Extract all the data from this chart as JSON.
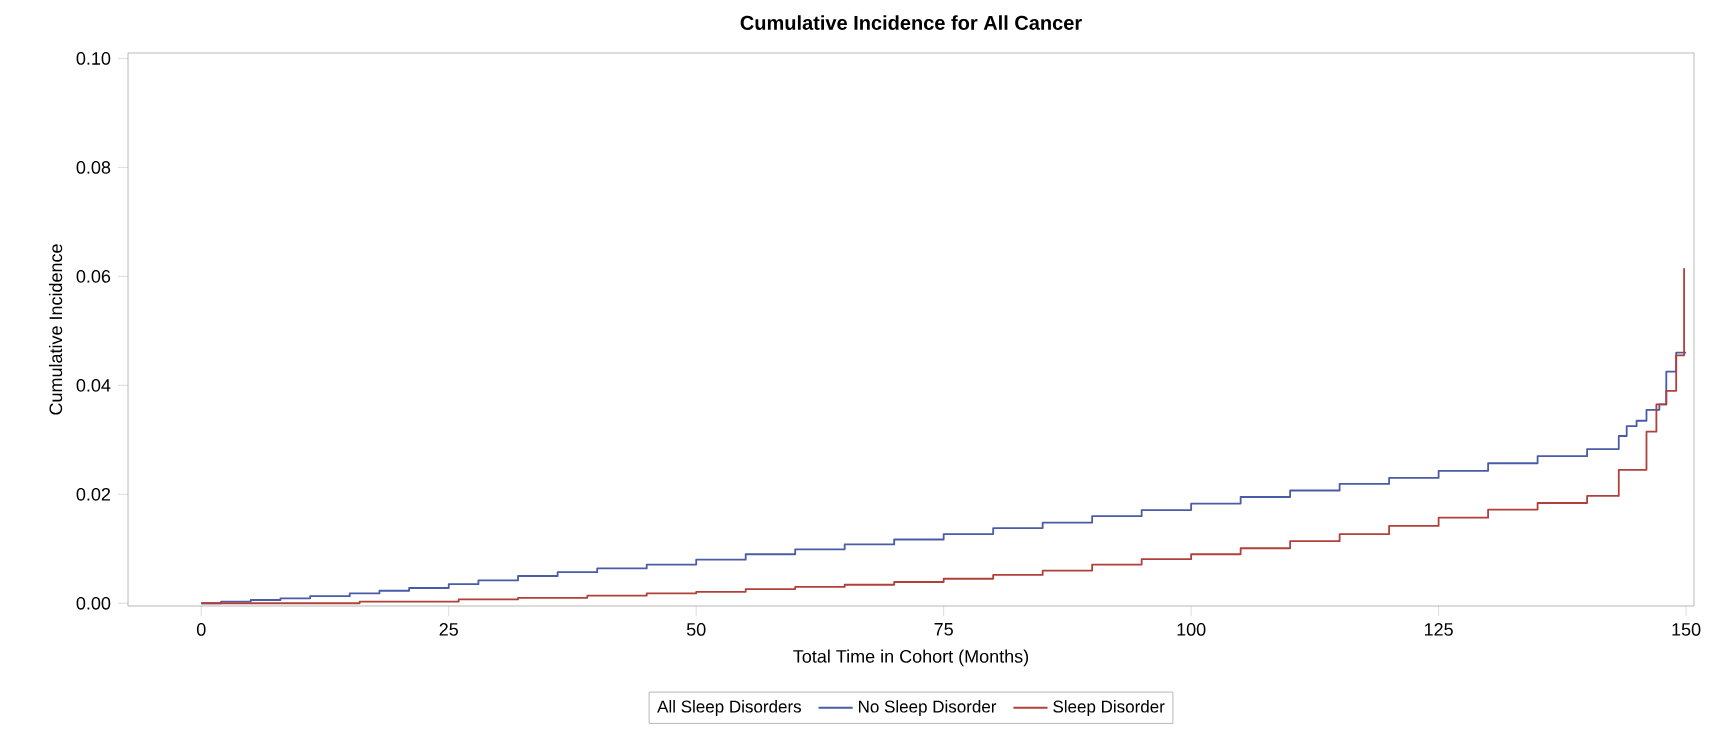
{
  "chart_data": {
    "type": "step",
    "title": "Cumulative Incidence for All Cancer",
    "xlabel": "Total Time in Cohort (Months)",
    "ylabel": "Cumulative Incidence",
    "legend_title": "All Sleep Disorders",
    "xlim": [
      -7.4,
      150.8
    ],
    "xticks": [
      0,
      25,
      50,
      75,
      100,
      125,
      150
    ],
    "ylim": [
      -0.0005,
      0.101
    ],
    "yticks": [
      {
        "value": 0,
        "label": "0.00"
      },
      {
        "value": 0.02,
        "label": "0.02"
      },
      {
        "value": 0.04,
        "label": "0.04"
      },
      {
        "value": 0.06,
        "label": "0.06"
      },
      {
        "value": 0.08,
        "label": "0.08"
      },
      {
        "value": 0.1,
        "label": "0.10"
      }
    ],
    "legend": "bottom",
    "grid": false,
    "series": [
      {
        "name": "No Sleep Disorder",
        "color": "#4a5ba8",
        "x": [
          0,
          2,
          5,
          8,
          11,
          15,
          18,
          21,
          25,
          28,
          32,
          36,
          40,
          45,
          50,
          55,
          60,
          65,
          70,
          75,
          80,
          85,
          90,
          95,
          100,
          105,
          110,
          115,
          120,
          125,
          130,
          135,
          140,
          143.2,
          144,
          145,
          146,
          147.3,
          148,
          149,
          150
        ],
        "values": [
          0,
          0.0003,
          0.0006,
          0.0009,
          0.0013,
          0.0018,
          0.0023,
          0.0028,
          0.0035,
          0.0042,
          0.005,
          0.0057,
          0.0064,
          0.0071,
          0.008,
          0.009,
          0.0099,
          0.0108,
          0.0117,
          0.0127,
          0.0138,
          0.0148,
          0.016,
          0.0171,
          0.0183,
          0.0195,
          0.0207,
          0.0219,
          0.023,
          0.0243,
          0.0257,
          0.027,
          0.0283,
          0.0307,
          0.0325,
          0.0335,
          0.0355,
          0.0365,
          0.0425,
          0.046,
          0.046
        ]
      },
      {
        "name": "Sleep Disorder",
        "color": "#b0403a",
        "x": [
          0,
          16,
          26,
          32,
          39,
          45,
          50,
          55,
          60,
          65,
          70,
          75,
          80,
          85,
          90,
          95,
          100,
          105,
          110,
          115,
          120,
          125,
          130,
          135,
          140,
          143.2,
          146,
          147,
          148,
          149,
          149.8
        ],
        "values": [
          0,
          0.0003,
          0.0007,
          0.001,
          0.0014,
          0.0018,
          0.0021,
          0.0026,
          0.003,
          0.0034,
          0.0039,
          0.0045,
          0.0052,
          0.006,
          0.0071,
          0.0081,
          0.009,
          0.0101,
          0.0114,
          0.0127,
          0.0142,
          0.0157,
          0.0172,
          0.0184,
          0.0197,
          0.0245,
          0.0315,
          0.0365,
          0.039,
          0.0455,
          0.0615
        ]
      }
    ]
  }
}
